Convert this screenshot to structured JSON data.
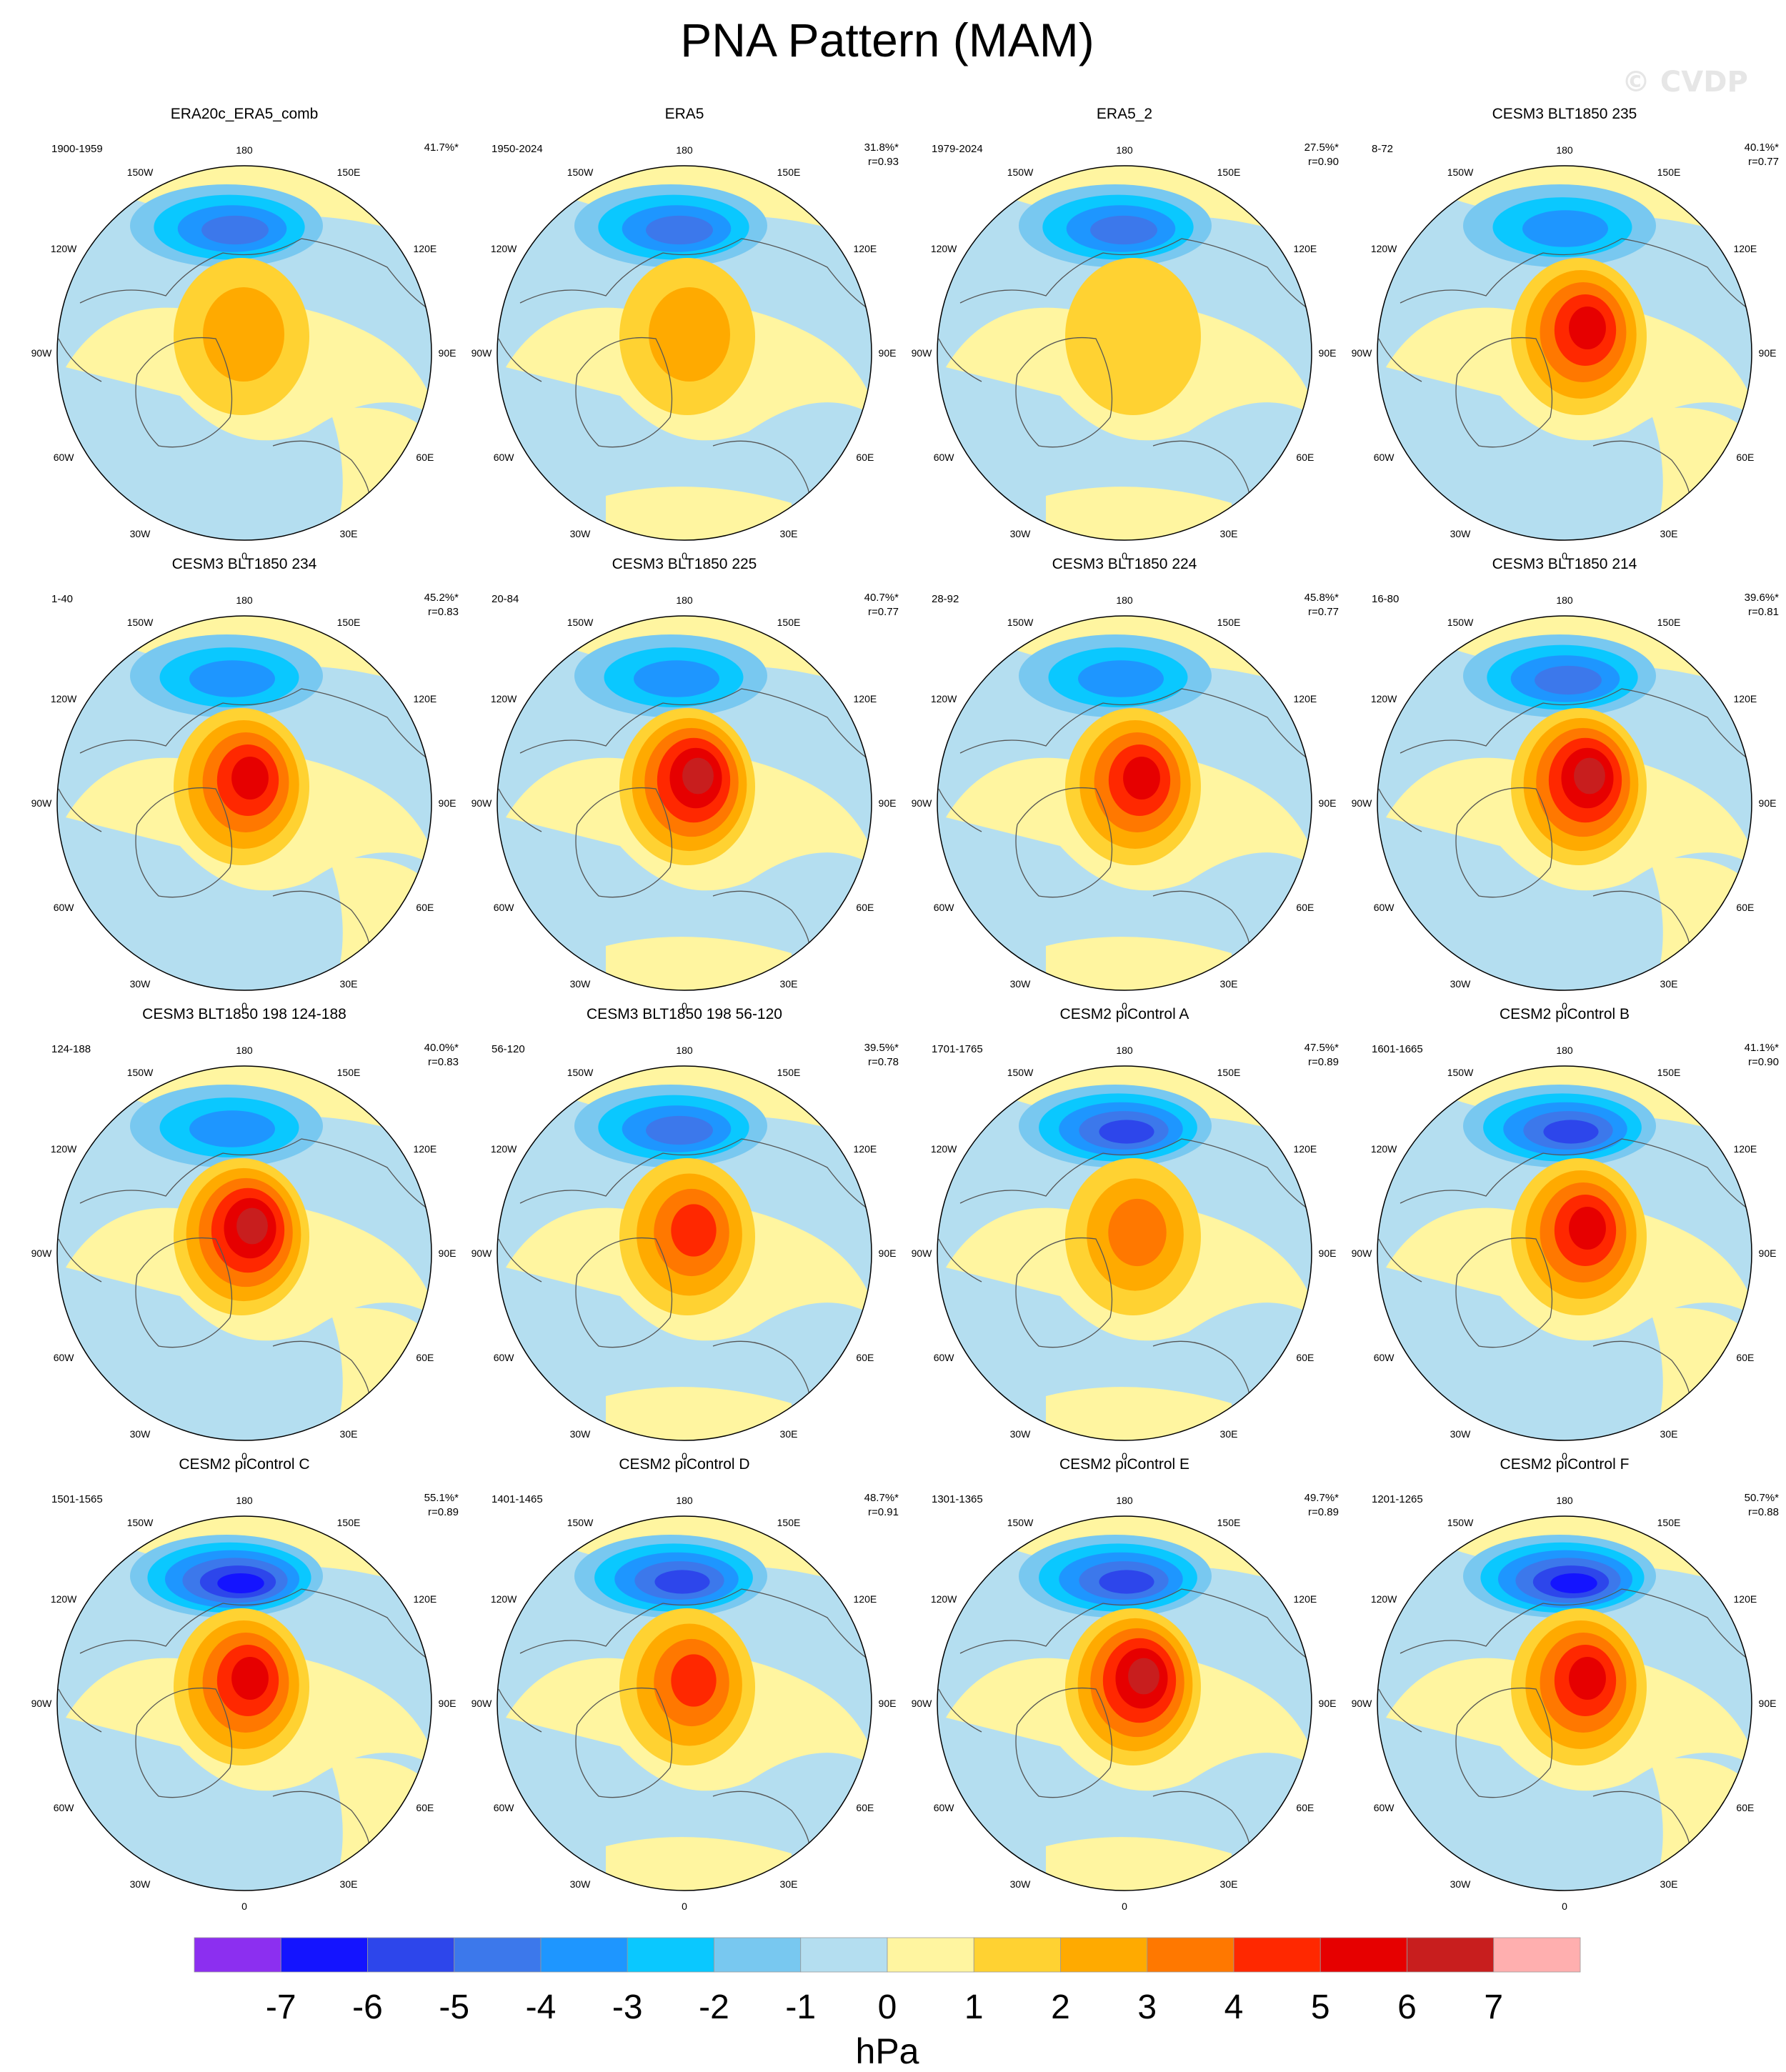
{
  "title": "PNA Pattern (MAM)",
  "watermark": "© CVDP",
  "longitude_labels": [
    "180",
    "150E",
    "120E",
    "90E",
    "60E",
    "30E",
    "0",
    "30W",
    "60W",
    "90W",
    "120W",
    "150W"
  ],
  "colorbar": {
    "units": "hPa",
    "ticks": [
      "-7",
      "-6",
      "-5",
      "-4",
      "-3",
      "-2",
      "-1",
      "0",
      "1",
      "2",
      "3",
      "4",
      "5",
      "6",
      "7"
    ],
    "colors": [
      "#8c2ff0",
      "#1414ff",
      "#2d46eb",
      "#3c78eb",
      "#1e96ff",
      "#0ac8ff",
      "#78c8f0",
      "#b4def0",
      "#fff5a0",
      "#ffd232",
      "#ffaa00",
      "#ff7800",
      "#ff2800",
      "#e60000",
      "#c81e1e",
      "#ffafaf"
    ]
  },
  "chart_data": [
    {
      "type": "heatmap",
      "title": "ERA20c_ERA5_comb",
      "years": "1900-1959",
      "pct": "41.7%*",
      "r": "",
      "neg_max": 4,
      "pos_max": 2,
      "variant": 0
    },
    {
      "type": "heatmap",
      "title": "ERA5",
      "years": "1950-2024",
      "pct": "31.8%*",
      "r": "r=0.93",
      "neg_max": 4,
      "pos_max": 2,
      "variant": 1
    },
    {
      "type": "heatmap",
      "title": "ERA5_2",
      "years": "1979-2024",
      "pct": "27.5%*",
      "r": "r=0.90",
      "neg_max": 4,
      "pos_max": 1,
      "variant": 2
    },
    {
      "type": "heatmap",
      "title": "CESM3 BLT1850 235",
      "years": "8-72",
      "pct": "40.1%*",
      "r": "r=0.77",
      "neg_max": 3,
      "pos_max": 5,
      "variant": 3
    },
    {
      "type": "heatmap",
      "title": "CESM3 BLT1850 234",
      "years": "1-40",
      "pct": "45.2%*",
      "r": "r=0.83",
      "neg_max": 3,
      "pos_max": 5,
      "variant": 0
    },
    {
      "type": "heatmap",
      "title": "CESM3 BLT1850 225",
      "years": "20-84",
      "pct": "40.7%*",
      "r": "r=0.77",
      "neg_max": 3,
      "pos_max": 6,
      "variant": 1
    },
    {
      "type": "heatmap",
      "title": "CESM3 BLT1850 224",
      "years": "28-92",
      "pct": "45.8%*",
      "r": "r=0.77",
      "neg_max": 3,
      "pos_max": 5,
      "variant": 2
    },
    {
      "type": "heatmap",
      "title": "CESM3 BLT1850 214",
      "years": "16-80",
      "pct": "39.6%*",
      "r": "r=0.81",
      "neg_max": 4,
      "pos_max": 6,
      "variant": 3
    },
    {
      "type": "heatmap",
      "title": "CESM3 BLT1850 198 124-188",
      "years": "124-188",
      "pct": "40.0%*",
      "r": "r=0.83",
      "neg_max": 3,
      "pos_max": 6,
      "variant": 0
    },
    {
      "type": "heatmap",
      "title": "CESM3 BLT1850 198 56-120",
      "years": "56-120",
      "pct": "39.5%*",
      "r": "r=0.78",
      "neg_max": 4,
      "pos_max": 4,
      "variant": 1
    },
    {
      "type": "heatmap",
      "title": "CESM2 piControl A",
      "years": "1701-1765",
      "pct": "47.5%*",
      "r": "r=0.89",
      "neg_max": 5,
      "pos_max": 3,
      "variant": 2
    },
    {
      "type": "heatmap",
      "title": "CESM2 piControl B",
      "years": "1601-1665",
      "pct": "41.1%*",
      "r": "r=0.90",
      "neg_max": 5,
      "pos_max": 5,
      "variant": 3
    },
    {
      "type": "heatmap",
      "title": "CESM2 piControl C",
      "years": "1501-1565",
      "pct": "55.1%*",
      "r": "r=0.89",
      "neg_max": 6,
      "pos_max": 5,
      "variant": 0
    },
    {
      "type": "heatmap",
      "title": "CESM2 piControl D",
      "years": "1401-1465",
      "pct": "48.7%*",
      "r": "r=0.91",
      "neg_max": 5,
      "pos_max": 4,
      "variant": 1
    },
    {
      "type": "heatmap",
      "title": "CESM2 piControl E",
      "years": "1301-1365",
      "pct": "49.7%*",
      "r": "r=0.89",
      "neg_max": 5,
      "pos_max": 6,
      "variant": 2
    },
    {
      "type": "heatmap",
      "title": "CESM2 piControl F",
      "years": "1201-1265",
      "pct": "50.7%*",
      "r": "r=0.88",
      "neg_max": 6,
      "pos_max": 5,
      "variant": 3
    }
  ]
}
